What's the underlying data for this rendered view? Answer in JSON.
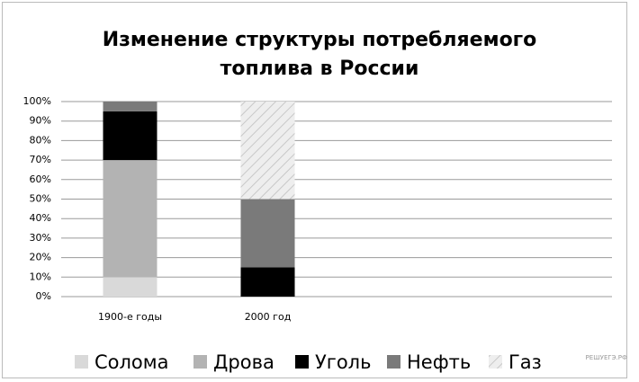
{
  "chart_data": {
    "type": "stacked_bar",
    "title": [
      "Изменение структуры потребляемого",
      "топлива в России"
    ],
    "categories": [
      "1900-е годы",
      "2000 год",
      null,
      null
    ],
    "series": [
      {
        "name": "Солома",
        "color": "#d9d9d9",
        "values": [
          10,
          0,
          null,
          null
        ]
      },
      {
        "name": "Дрова",
        "color": "#b3b3b3",
        "values": [
          60,
          0,
          null,
          null
        ]
      },
      {
        "name": "Уголь",
        "color": "#000000",
        "values": [
          25,
          15,
          null,
          null
        ]
      },
      {
        "name": "Нефть",
        "color": "#7a7a7a",
        "values": [
          5,
          35,
          null,
          null
        ]
      },
      {
        "name": "Газ",
        "color": "#eeeeee",
        "pattern": "diagonal-hatch",
        "values": [
          0,
          50,
          null,
          null
        ]
      }
    ],
    "ylim": [
      0,
      100
    ],
    "yticks": [
      {
        "value": 0,
        "label": "0%"
      },
      {
        "value": 10,
        "label": "10%"
      },
      {
        "value": 20,
        "label": "20%"
      },
      {
        "value": 30,
        "label": "30%"
      },
      {
        "value": 40,
        "label": "40%"
      },
      {
        "value": 50,
        "label": "50%"
      },
      {
        "value": 60,
        "label": "60%"
      },
      {
        "value": 70,
        "label": "70%"
      },
      {
        "value": 80,
        "label": "80%"
      },
      {
        "value": 90,
        "label": "90%"
      },
      {
        "value": 100,
        "label": "100%"
      }
    ],
    "grid": true,
    "legend": "bottom"
  },
  "watermark": "РЕШУЕГЭ.РФ"
}
